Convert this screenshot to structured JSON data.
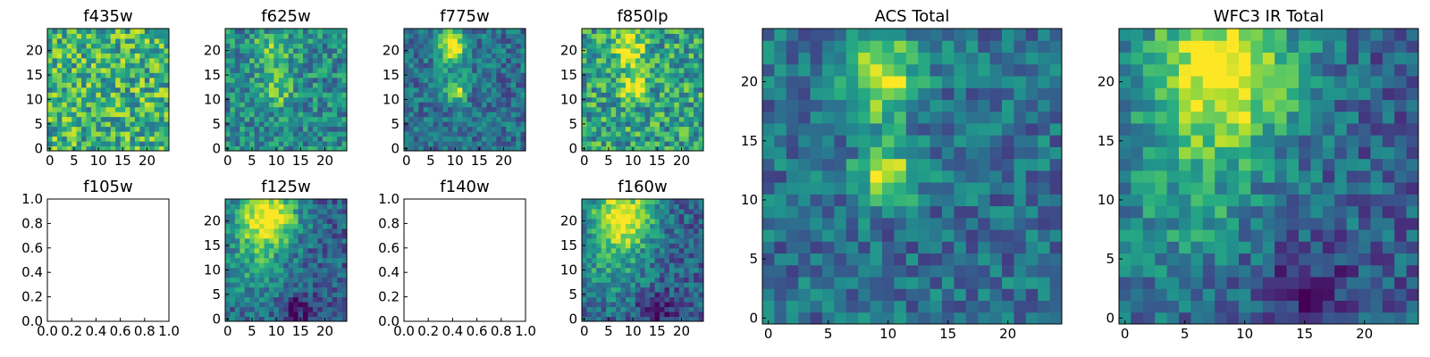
{
  "chart_data": [
    {
      "name": "f435w",
      "type": "heatmap",
      "title": "f435w",
      "colormap": "viridis",
      "grid_size": 25,
      "x_ticks": [
        "0",
        "5",
        "10",
        "15",
        "20"
      ],
      "y_ticks": [
        "0",
        "5",
        "10",
        "15",
        "20"
      ],
      "pattern": "noise",
      "has_data": true
    },
    {
      "name": "f625w",
      "type": "heatmap",
      "title": "f625w",
      "colormap": "viridis",
      "grid_size": 25,
      "x_ticks": [
        "0",
        "5",
        "10",
        "15",
        "20"
      ],
      "y_ticks": [
        "0",
        "5",
        "10",
        "15",
        "20"
      ],
      "pattern": "faint-two-sources",
      "has_data": true
    },
    {
      "name": "f775w",
      "type": "heatmap",
      "title": "f775w",
      "colormap": "viridis",
      "grid_size": 25,
      "x_ticks": [
        "0",
        "5",
        "10",
        "15",
        "20"
      ],
      "y_ticks": [
        "0",
        "5",
        "10",
        "15",
        "20"
      ],
      "pattern": "two-sources",
      "has_data": true
    },
    {
      "name": "f850lp",
      "type": "heatmap",
      "title": "f850lp",
      "colormap": "viridis",
      "grid_size": 25,
      "x_ticks": [
        "0",
        "5",
        "10",
        "15",
        "20"
      ],
      "y_ticks": [
        "0",
        "5",
        "10",
        "15",
        "20"
      ],
      "pattern": "two-sources-noisy",
      "has_data": true
    },
    {
      "name": "f105w",
      "type": "heatmap",
      "title": "f105w",
      "colormap": "viridis",
      "grid_size": 25,
      "x_ticks": [
        "0.0",
        "0.2",
        "0.4",
        "0.6",
        "0.8",
        "1.0"
      ],
      "y_ticks": [
        "0.0",
        "0.2",
        "0.4",
        "0.6",
        "0.8",
        "1.0"
      ],
      "pattern": "empty",
      "has_data": false
    },
    {
      "name": "f125w",
      "type": "heatmap",
      "title": "f125w",
      "colormap": "viridis",
      "grid_size": 25,
      "x_ticks": [
        "0",
        "5",
        "10",
        "15",
        "20"
      ],
      "y_ticks": [
        "0",
        "5",
        "10",
        "15",
        "20"
      ],
      "pattern": "extended-source",
      "has_data": true
    },
    {
      "name": "f140w",
      "type": "heatmap",
      "title": "f140w",
      "colormap": "viridis",
      "grid_size": 25,
      "x_ticks": [
        "0.0",
        "0.2",
        "0.4",
        "0.6",
        "0.8",
        "1.0"
      ],
      "y_ticks": [
        "0.0",
        "0.2",
        "0.4",
        "0.6",
        "0.8",
        "1.0"
      ],
      "pattern": "empty",
      "has_data": false
    },
    {
      "name": "f160w",
      "type": "heatmap",
      "title": "f160w",
      "colormap": "viridis",
      "grid_size": 25,
      "x_ticks": [
        "0",
        "5",
        "10",
        "15",
        "20"
      ],
      "y_ticks": [
        "0",
        "5",
        "10",
        "15",
        "20"
      ],
      "pattern": "extended-source",
      "has_data": true
    },
    {
      "name": "acs-total",
      "type": "heatmap",
      "title": "ACS Total",
      "colormap": "viridis",
      "grid_size": 25,
      "x_ticks": [
        "0",
        "5",
        "10",
        "15",
        "20"
      ],
      "y_ticks": [
        "0",
        "5",
        "10",
        "15",
        "20"
      ],
      "pattern": "two-sources",
      "has_data": true
    },
    {
      "name": "wfc3-ir-total",
      "type": "heatmap",
      "title": "WFC3 IR Total",
      "colormap": "viridis",
      "grid_size": 25,
      "x_ticks": [
        "0",
        "5",
        "10",
        "15",
        "20"
      ],
      "y_ticks": [
        "0",
        "5",
        "10",
        "15",
        "20"
      ],
      "pattern": "extended-source",
      "has_data": true
    }
  ]
}
